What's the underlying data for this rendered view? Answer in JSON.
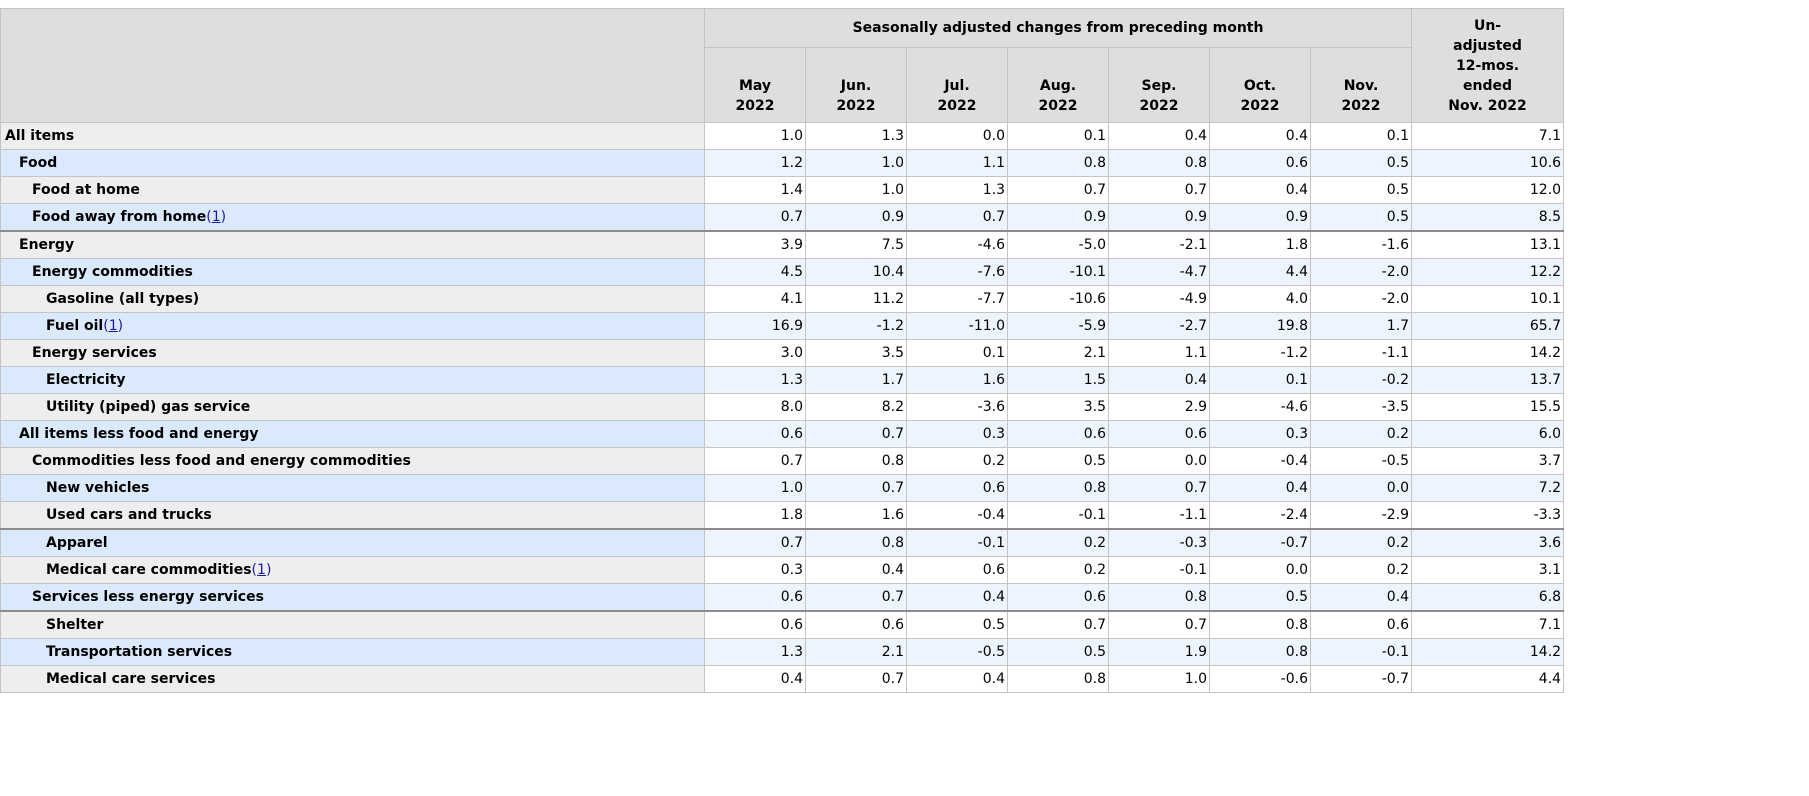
{
  "header": {
    "group_label": "Seasonally adjusted changes from preceding month",
    "months": [
      {
        "line1": "May",
        "line2": "2022"
      },
      {
        "line1": "Jun.",
        "line2": "2022"
      },
      {
        "line1": "Jul.",
        "line2": "2022"
      },
      {
        "line1": "Aug.",
        "line2": "2022"
      },
      {
        "line1": "Sep.",
        "line2": "2022"
      },
      {
        "line1": "Oct.",
        "line2": "2022"
      },
      {
        "line1": "Nov.",
        "line2": "2022"
      }
    ],
    "unadjusted": {
      "line1": "Un-",
      "line2": "adjusted",
      "line3": "12-mos.",
      "line4": "ended",
      "line5": "Nov. 2022"
    }
  },
  "rows": [
    {
      "label": "All items",
      "level": 0,
      "note": "",
      "values": [
        "1.0",
        "1.3",
        "0.0",
        "0.1",
        "0.4",
        "0.4",
        "0.1"
      ],
      "unadjusted": "7.1"
    },
    {
      "label": "Food",
      "level": 1,
      "note": "",
      "values": [
        "1.2",
        "1.0",
        "1.1",
        "0.8",
        "0.8",
        "0.6",
        "0.5"
      ],
      "unadjusted": "10.6"
    },
    {
      "label": "Food at home",
      "level": 2,
      "note": "",
      "values": [
        "1.4",
        "1.0",
        "1.3",
        "0.7",
        "0.7",
        "0.4",
        "0.5"
      ],
      "unadjusted": "12.0"
    },
    {
      "label": "Food away from home",
      "level": 2,
      "note": "1",
      "values": [
        "0.7",
        "0.9",
        "0.7",
        "0.9",
        "0.9",
        "0.9",
        "0.5"
      ],
      "unadjusted": "8.5"
    },
    {
      "label": "Energy",
      "level": 1,
      "note": "",
      "values": [
        "3.9",
        "7.5",
        "-4.6",
        "-5.0",
        "-2.1",
        "1.8",
        "-1.6"
      ],
      "unadjusted": "13.1"
    },
    {
      "label": "Energy commodities",
      "level": 2,
      "note": "",
      "values": [
        "4.5",
        "10.4",
        "-7.6",
        "-10.1",
        "-4.7",
        "4.4",
        "-2.0"
      ],
      "unadjusted": "12.2"
    },
    {
      "label": "Gasoline (all types)",
      "level": 3,
      "note": "",
      "values": [
        "4.1",
        "11.2",
        "-7.7",
        "-10.6",
        "-4.9",
        "4.0",
        "-2.0"
      ],
      "unadjusted": "10.1"
    },
    {
      "label": "Fuel oil",
      "level": 3,
      "note": "1",
      "values": [
        "16.9",
        "-1.2",
        "-11.0",
        "-5.9",
        "-2.7",
        "19.8",
        "1.7"
      ],
      "unadjusted": "65.7"
    },
    {
      "label": "Energy services",
      "level": 2,
      "note": "",
      "values": [
        "3.0",
        "3.5",
        "0.1",
        "2.1",
        "1.1",
        "-1.2",
        "-1.1"
      ],
      "unadjusted": "14.2"
    },
    {
      "label": "Electricity",
      "level": 3,
      "note": "",
      "values": [
        "1.3",
        "1.7",
        "1.6",
        "1.5",
        "0.4",
        "0.1",
        "-0.2"
      ],
      "unadjusted": "13.7"
    },
    {
      "label": "Utility (piped) gas service",
      "level": 3,
      "note": "",
      "values": [
        "8.0",
        "8.2",
        "-3.6",
        "3.5",
        "2.9",
        "-4.6",
        "-3.5"
      ],
      "unadjusted": "15.5"
    },
    {
      "label": "All items less food and energy",
      "level": 1,
      "note": "",
      "values": [
        "0.6",
        "0.7",
        "0.3",
        "0.6",
        "0.6",
        "0.3",
        "0.2"
      ],
      "unadjusted": "6.0"
    },
    {
      "label": "Commodities less food and energy commodities",
      "level": 2,
      "note": "",
      "values": [
        "0.7",
        "0.8",
        "0.2",
        "0.5",
        "0.0",
        "-0.4",
        "-0.5"
      ],
      "unadjusted": "3.7"
    },
    {
      "label": "New vehicles",
      "level": 3,
      "note": "",
      "values": [
        "1.0",
        "0.7",
        "0.6",
        "0.8",
        "0.7",
        "0.4",
        "0.0"
      ],
      "unadjusted": "7.2"
    },
    {
      "label": "Used cars and trucks",
      "level": 3,
      "note": "",
      "values": [
        "1.8",
        "1.6",
        "-0.4",
        "-0.1",
        "-1.1",
        "-2.4",
        "-2.9"
      ],
      "unadjusted": "-3.3"
    },
    {
      "label": "Apparel",
      "level": 3,
      "note": "",
      "values": [
        "0.7",
        "0.8",
        "-0.1",
        "0.2",
        "-0.3",
        "-0.7",
        "0.2"
      ],
      "unadjusted": "3.6"
    },
    {
      "label": "Medical care commodities",
      "level": 3,
      "note": "1",
      "values": [
        "0.3",
        "0.4",
        "0.6",
        "0.2",
        "-0.1",
        "0.0",
        "0.2"
      ],
      "unadjusted": "3.1"
    },
    {
      "label": "Services less energy services",
      "level": 2,
      "note": "",
      "values": [
        "0.6",
        "0.7",
        "0.4",
        "0.6",
        "0.8",
        "0.5",
        "0.4"
      ],
      "unadjusted": "6.8"
    },
    {
      "label": "Shelter",
      "level": 3,
      "note": "",
      "values": [
        "0.6",
        "0.6",
        "0.5",
        "0.7",
        "0.7",
        "0.8",
        "0.6"
      ],
      "unadjusted": "7.1"
    },
    {
      "label": "Transportation services",
      "level": 3,
      "note": "",
      "values": [
        "1.3",
        "2.1",
        "-0.5",
        "0.5",
        "1.9",
        "0.8",
        "-0.1"
      ],
      "unadjusted": "14.2"
    },
    {
      "label": "Medical care services",
      "level": 3,
      "note": "",
      "values": [
        "0.4",
        "0.7",
        "0.4",
        "0.8",
        "1.0",
        "-0.6",
        "-0.7"
      ],
      "unadjusted": "4.4"
    }
  ]
}
